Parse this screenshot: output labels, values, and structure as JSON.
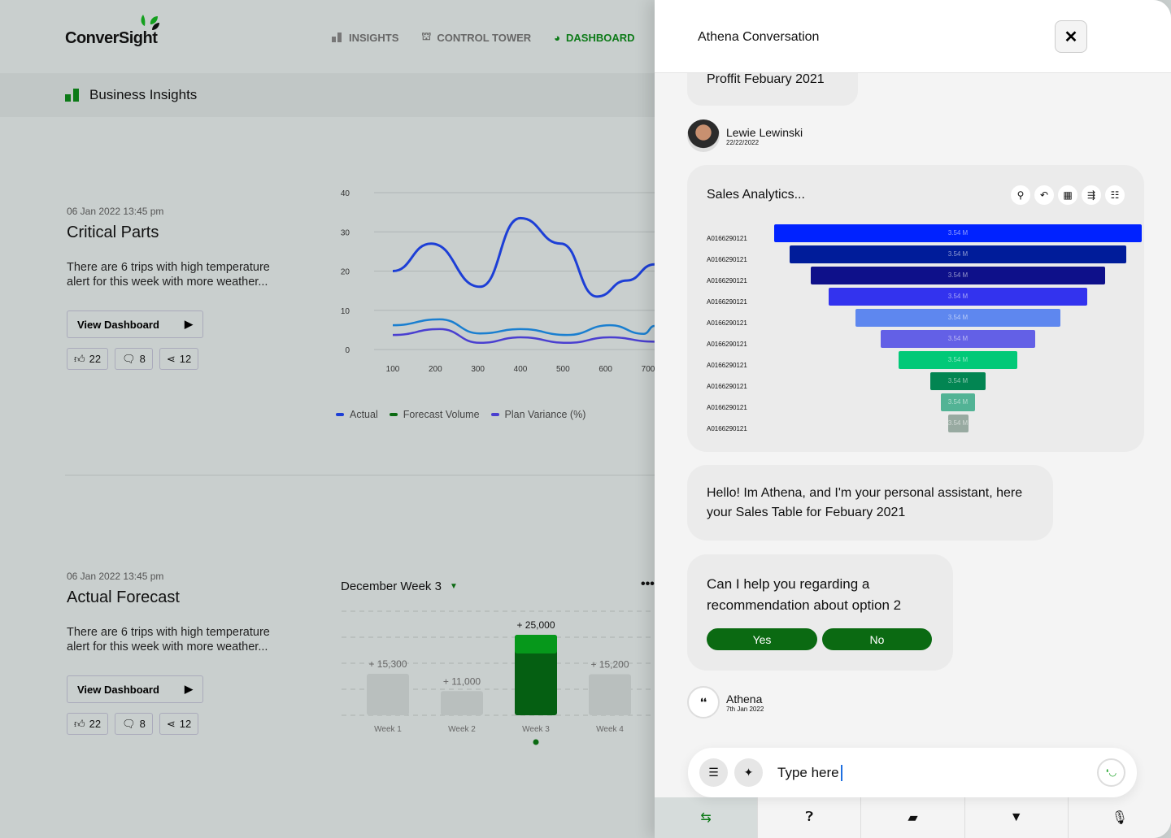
{
  "brand": "ConverSight",
  "nav": [
    {
      "label": "INSIGHTS",
      "icon": "bar-chart-icon"
    },
    {
      "label": "CONTROL TOWER",
      "icon": "tower-icon"
    },
    {
      "label": "DASHBOARD",
      "icon": "dashboard-icon",
      "active": true
    }
  ],
  "subheader": "Business Insights",
  "cards": [
    {
      "date": "06 Jan 2022 13:45 pm",
      "title": "Critical Parts",
      "text": "There are 6 trips with high temperature alert for this week with more weather...",
      "button": "View Dashboard",
      "likes": "22",
      "comments": "8",
      "shares": "12"
    },
    {
      "date": "06 Jan 2022 13:45 pm",
      "title": "Actual Forecast",
      "text": "There are 6 trips with high temperature alert for this week with more weather...",
      "button": "View Dashboard",
      "likes": "22",
      "comments": "8",
      "shares": "12"
    }
  ],
  "chart_data": [
    {
      "type": "line",
      "xlim": [
        100,
        700
      ],
      "ylim": [
        0,
        40
      ],
      "x_ticks": [
        "100",
        "200",
        "300",
        "400",
        "500",
        "600",
        "700"
      ],
      "y_ticks": [
        "0",
        "10",
        "20",
        "30",
        "40"
      ],
      "series": [
        {
          "name": "Actual",
          "color": "#1d3fd6",
          "x": [
            100,
            190,
            305,
            400,
            495,
            580,
            650,
            715
          ],
          "y": [
            20,
            27,
            16,
            33.5,
            27,
            13.5,
            17.6,
            21.7
          ]
        },
        {
          "name": "Forecast Volume",
          "color": "#1a7fd0",
          "legend_color": "#0b6a12",
          "x": [
            100,
            210,
            305,
            400,
            510,
            610,
            690,
            715
          ],
          "y": [
            6.2,
            7.7,
            4.1,
            5.2,
            3.7,
            6.2,
            4,
            6
          ]
        },
        {
          "name": "Plan Variance (%)",
          "color": "#4a3fd0",
          "x": [
            100,
            210,
            305,
            400,
            510,
            610,
            715
          ],
          "y": [
            3.7,
            5.2,
            1.7,
            3.1,
            1.7,
            3.1,
            2
          ]
        }
      ]
    },
    {
      "type": "bar",
      "title": "December Week 3",
      "categories": [
        "Week 1",
        "Week 2",
        "Week 3",
        "Week 4"
      ],
      "values": [
        15300,
        11000,
        25000,
        15200
      ],
      "labels": [
        "+ 15,300",
        "+ 11,000",
        "+ 25,000",
        "+ 15,200"
      ],
      "highlight": "Week 3",
      "ylim": [
        5000,
        25000
      ]
    }
  ],
  "panel": {
    "title": "Athena Conversation",
    "prev_bubble": "Proffit Febuary 2021",
    "user": {
      "name": "Lewie Lewinski",
      "date": "22/22/2022"
    },
    "sales_title": "Sales Analytics...",
    "funnel": {
      "labels": [
        "A0166290121",
        "A0166290121",
        "A0166290121",
        "A0166290121",
        "A0166290121",
        "A0166290121",
        "A0166290121",
        "A0166290121",
        "A0166290121",
        "A0166290121"
      ],
      "value_label": "3.54 M",
      "colors": [
        "#0022ff",
        "#001c9a",
        "#0e108a",
        "#3333ee",
        "#5e87ef",
        "#6360e6",
        "#02c978",
        "#028552",
        "#52b395",
        "#98aaa1"
      ]
    },
    "msg1": "Hello! Im Athena, and I'm your personal assistant, here your Sales Table for Febuary 2021",
    "msg2": "Can I help you regarding a recommendation about option 2",
    "yes": "Yes",
    "no": "No",
    "athena": {
      "name": "Athena",
      "date": "7th Jan 2022"
    },
    "input_placeholder": "Type here"
  }
}
